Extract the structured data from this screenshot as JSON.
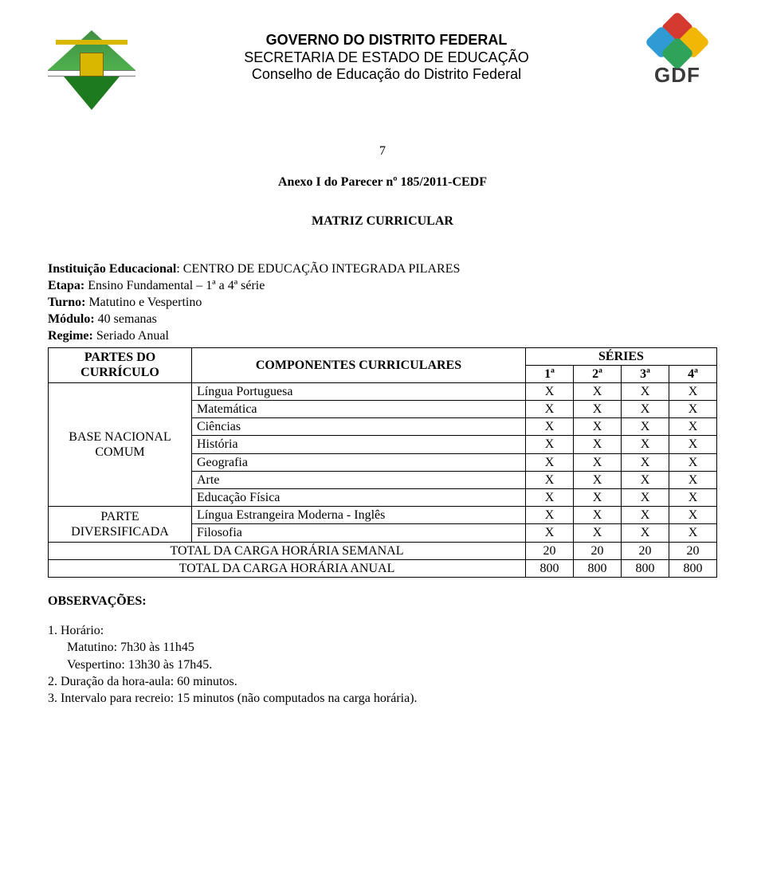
{
  "header": {
    "line1": "GOVERNO DO DISTRITO FEDERAL",
    "line2": "SECRETARIA DE ESTADO DE EDUCAÇÃO",
    "line3": "Conselho de Educação do Distrito Federal",
    "gdf_label": "GDF"
  },
  "page_number": "7",
  "annex_line": "Anexo I do Parecer nº 185/2011-CEDF",
  "matriz_title": "MATRIZ CURRICULAR",
  "info": {
    "instituicao_k": "Instituição Educacional",
    "instituicao_v": ": CENTRO DE EDUCAÇÃO INTEGRADA PILARES",
    "etapa_k": "Etapa:",
    "etapa_v": " Ensino Fundamental – 1ª a 4ª série",
    "turno_k": "Turno:",
    "turno_v": " Matutino e Vespertino",
    "modulo_k": "Módulo:",
    "modulo_v": " 40 semanas",
    "regime_k": "Regime:",
    "regime_v": " Seriado Anual"
  },
  "table": {
    "col_partes": "PARTES DO CURRÍCULO",
    "col_componentes": "COMPONENTES CURRICULARES",
    "col_series": "SÉRIES",
    "series": [
      "1ª",
      "2ª",
      "3ª",
      "4ª"
    ],
    "group_base": "BASE NACIONAL COMUM",
    "group_div": "PARTE DIVERSIFICADA",
    "rows_base": [
      {
        "label": "Língua Portuguesa",
        "v": [
          "X",
          "X",
          "X",
          "X"
        ]
      },
      {
        "label": "Matemática",
        "v": [
          "X",
          "X",
          "X",
          "X"
        ]
      },
      {
        "label": "Ciências",
        "v": [
          "X",
          "X",
          "X",
          "X"
        ]
      },
      {
        "label": "História",
        "v": [
          "X",
          "X",
          "X",
          "X"
        ]
      },
      {
        "label": "Geografia",
        "v": [
          "X",
          "X",
          "X",
          "X"
        ]
      },
      {
        "label": "Arte",
        "v": [
          "X",
          "X",
          "X",
          "X"
        ]
      },
      {
        "label": "Educação Física",
        "v": [
          "X",
          "X",
          "X",
          "X"
        ]
      }
    ],
    "rows_div": [
      {
        "label": "Língua Estrangeira Moderna - Inglês",
        "v": [
          "X",
          "X",
          "X",
          "X"
        ]
      },
      {
        "label": "Filosofia",
        "v": [
          "X",
          "X",
          "X",
          "X"
        ]
      }
    ],
    "total_semanal_label": "TOTAL DA CARGA HORÁRIA SEMANAL",
    "total_semanal": [
      "20",
      "20",
      "20",
      "20"
    ],
    "total_anual_label": "TOTAL DA CARGA HORÁRIA ANUAL",
    "total_anual": [
      "800",
      "800",
      "800",
      "800"
    ]
  },
  "obs": {
    "title": "OBSERVAÇÕES:",
    "n1": "1. Horário:",
    "n1a": "Matutino: 7h30 às 11h45",
    "n1b": "Vespertino: 13h30 às 17h45.",
    "n2": "2. Duração da hora-aula: 60 minutos.",
    "n3": "3. Intervalo para recreio: 15 minutos (não computados na carga horária)."
  },
  "colors": {
    "text": "#000000",
    "border": "#000000",
    "background": "#ffffff"
  }
}
